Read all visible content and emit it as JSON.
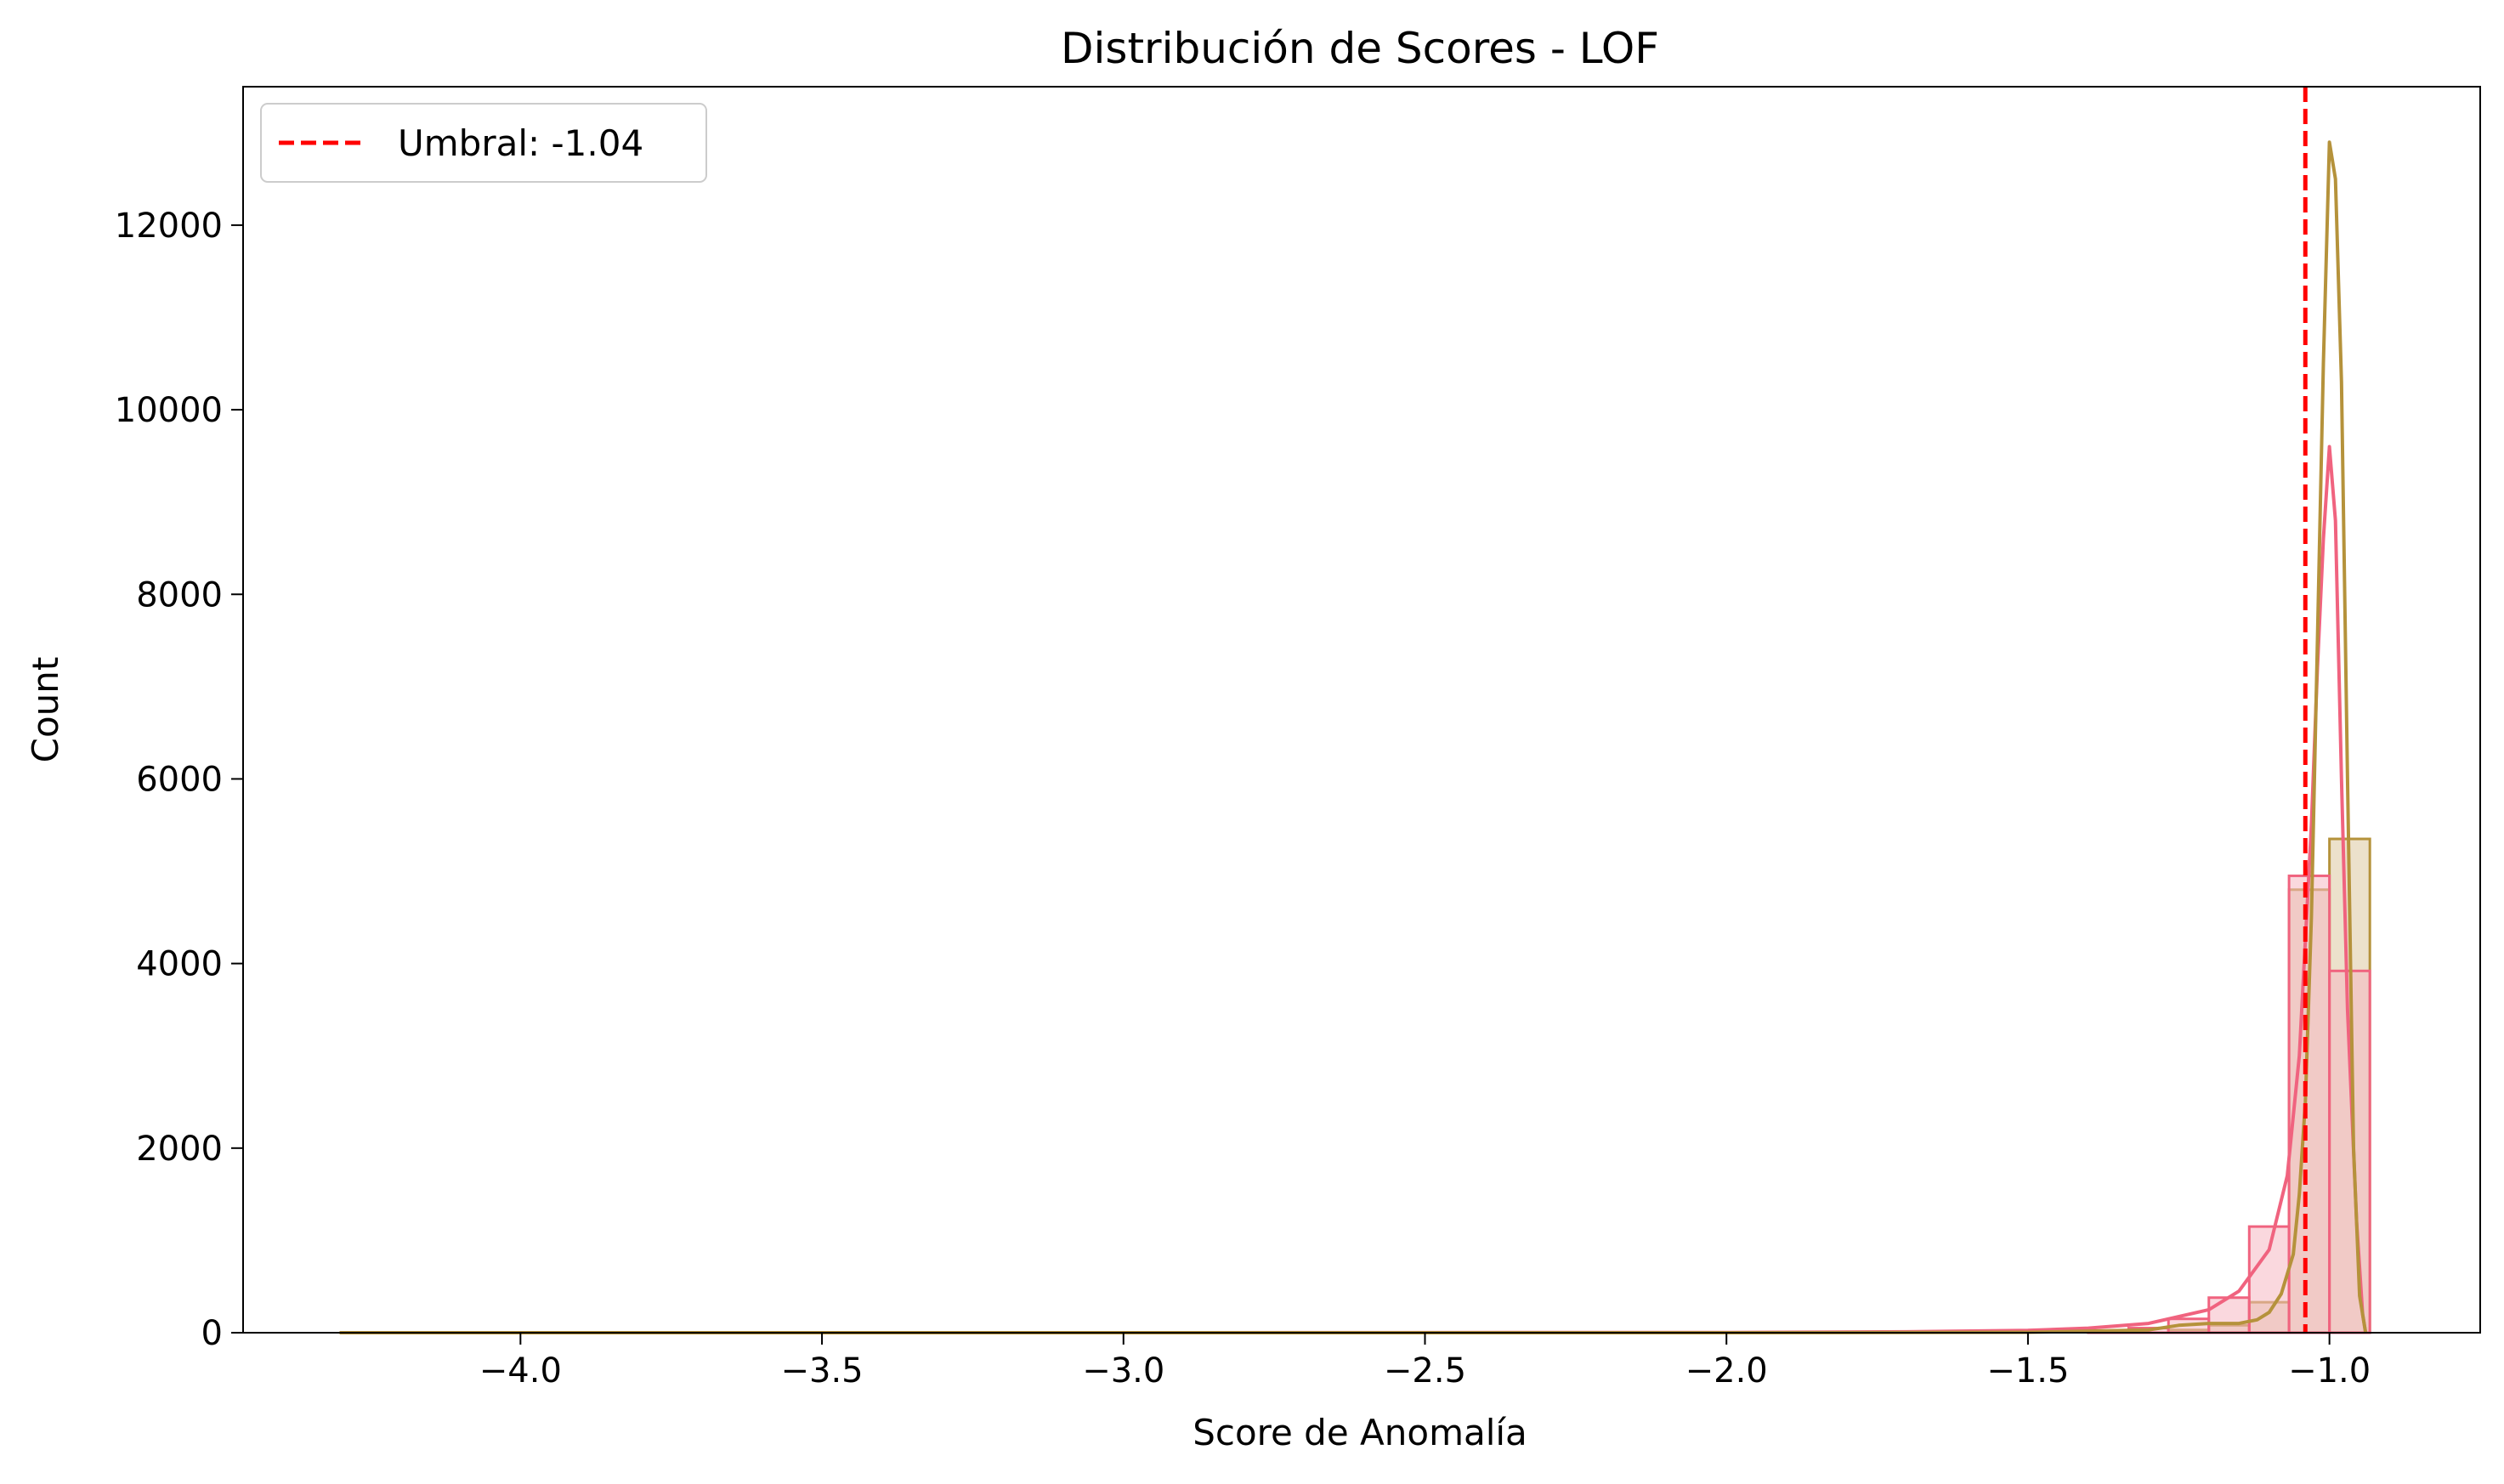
{
  "chart_data": {
    "type": "histogram",
    "title": "Distribución de Scores - LOF",
    "xlabel": "Score de Anomalía",
    "ylabel": "Count",
    "xlim": [
      -4.46,
      -0.75
    ],
    "ylim": [
      0,
      13500
    ],
    "x_ticks": [
      -4.0,
      -3.5,
      -3.0,
      -2.5,
      -2.0,
      -1.5,
      -1.0
    ],
    "x_tick_labels": [
      "−4.0",
      "−3.5",
      "−3.0",
      "−2.5",
      "−2.0",
      "−1.5",
      "−1.0"
    ],
    "y_ticks": [
      0,
      2000,
      4000,
      6000,
      8000,
      10000,
      12000
    ],
    "y_tick_labels": [
      "0",
      "2000",
      "4000",
      "6000",
      "8000",
      "10000",
      "12000"
    ],
    "grid": false,
    "legend": {
      "placement": "upper-left",
      "entries": [
        {
          "label": "Umbral: -1.04",
          "style": "dashed",
          "color": "#ff0000"
        }
      ]
    },
    "threshold": {
      "value": -1.04,
      "label": "Umbral: -1.04",
      "color": "#ff0000"
    },
    "bin_width": 0.0667,
    "series": [
      {
        "name": "pink",
        "color": "#f0637f",
        "fill": "#f5b8c3",
        "bars": [
          {
            "x0": -1.4,
            "x1": -1.333,
            "value": 20
          },
          {
            "x0": -1.333,
            "x1": -1.267,
            "value": 50
          },
          {
            "x0": -1.267,
            "x1": -1.2,
            "value": 150
          },
          {
            "x0": -1.2,
            "x1": -1.133,
            "value": 380
          },
          {
            "x0": -1.133,
            "x1": -1.067,
            "value": 1150
          },
          {
            "x0": -1.067,
            "x1": -1.0,
            "value": 4950
          },
          {
            "x0": -1.0,
            "x1": -0.933,
            "value": 3920
          }
        ],
        "kde": [
          [
            -4.3,
            0
          ],
          [
            -3.0,
            0
          ],
          [
            -2.0,
            3
          ],
          [
            -1.7,
            10
          ],
          [
            -1.5,
            25
          ],
          [
            -1.4,
            50
          ],
          [
            -1.3,
            100
          ],
          [
            -1.2,
            250
          ],
          [
            -1.15,
            450
          ],
          [
            -1.1,
            900
          ],
          [
            -1.07,
            1700
          ],
          [
            -1.05,
            3000
          ],
          [
            -1.03,
            5500
          ],
          [
            -1.02,
            7200
          ],
          [
            -1.01,
            8600
          ],
          [
            -1.0,
            9600
          ],
          [
            -0.99,
            8800
          ],
          [
            -0.98,
            6000
          ],
          [
            -0.97,
            3500
          ],
          [
            -0.955,
            1200
          ],
          [
            -0.945,
            200
          ],
          [
            -0.94,
            0
          ]
        ]
      },
      {
        "name": "olive",
        "color": "#b5923b",
        "fill": "#dcc9a0",
        "bars": [
          {
            "x0": -1.267,
            "x1": -1.2,
            "value": 30
          },
          {
            "x0": -1.2,
            "x1": -1.133,
            "value": 80
          },
          {
            "x0": -1.133,
            "x1": -1.067,
            "value": 330
          },
          {
            "x0": -1.067,
            "x1": -1.0,
            "value": 4800
          },
          {
            "x0": -1.0,
            "x1": -0.933,
            "value": 5350
          }
        ],
        "kde": [
          [
            -4.3,
            0
          ],
          [
            -2.0,
            0
          ],
          [
            -1.5,
            5
          ],
          [
            -1.3,
            30
          ],
          [
            -1.25,
            80
          ],
          [
            -1.2,
            100
          ],
          [
            -1.15,
            100
          ],
          [
            -1.12,
            140
          ],
          [
            -1.1,
            220
          ],
          [
            -1.08,
            420
          ],
          [
            -1.06,
            850
          ],
          [
            -1.05,
            1500
          ],
          [
            -1.04,
            2500
          ],
          [
            -1.03,
            4500
          ],
          [
            -1.02,
            7500
          ],
          [
            -1.01,
            10500
          ],
          [
            -1.0,
            12900
          ],
          [
            -0.99,
            12500
          ],
          [
            -0.98,
            10300
          ],
          [
            -0.97,
            6000
          ],
          [
            -0.96,
            2000
          ],
          [
            -0.95,
            400
          ],
          [
            -0.94,
            0
          ]
        ]
      }
    ]
  }
}
